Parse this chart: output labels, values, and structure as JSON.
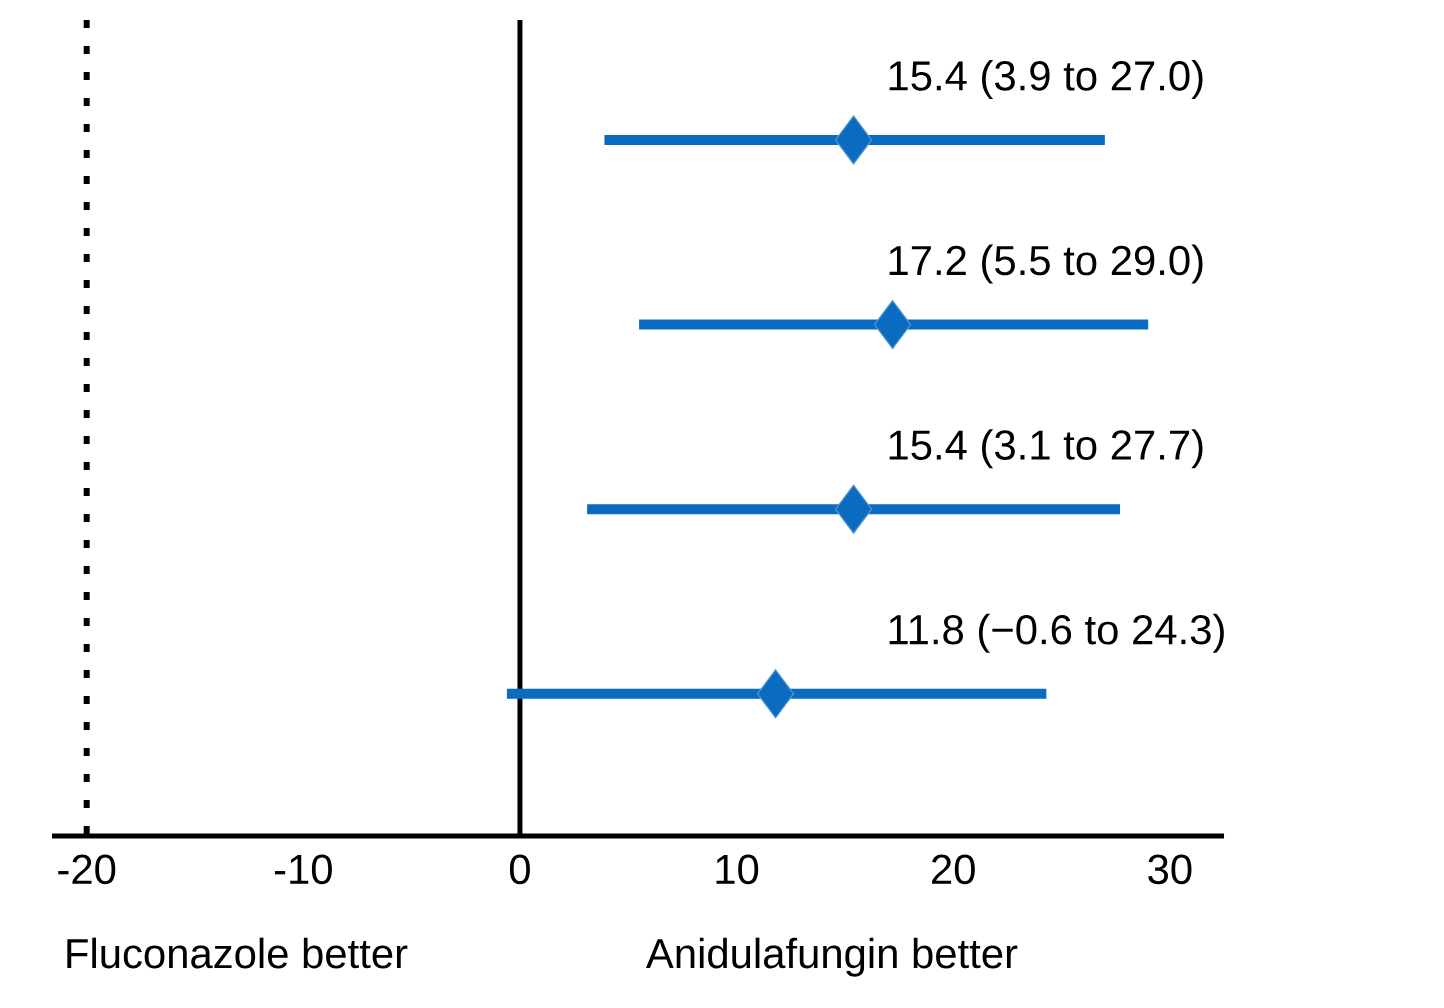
{
  "chart_data": {
    "type": "scatter",
    "orientation": "horizontal",
    "categories": [
      null,
      null,
      null,
      null
    ],
    "values": [
      15.4,
      17.2,
      15.4,
      11.8
    ],
    "errors": [
      [
        3.9,
        27.0
      ],
      [
        5.5,
        29.0
      ],
      [
        3.1,
        27.7
      ],
      [
        -0.6,
        24.3
      ]
    ],
    "value_labels": [
      "15.4 (3.9 to 27.0)",
      "17.2 (5.5 to 29.0)",
      "15.4 (3.1 to 27.7)",
      "11.8 (−0.6 to 24.3)"
    ],
    "color": "#0a6bc0",
    "marker": "diamond",
    "tick_labels": "x",
    "grid": false,
    "xlim": [
      -21.6,
      32.5
    ],
    "xticks": [
      -20,
      -10,
      0,
      10,
      20,
      30
    ],
    "ref_lines": [
      {
        "axis": "x",
        "value": -20,
        "line_style": "dotted",
        "color": "#000000"
      },
      {
        "axis": "x",
        "value": 0,
        "line_style": "solid",
        "color": "#000000"
      }
    ],
    "annotations": [
      "Fluconazole better",
      "Anidulafungin better"
    ]
  }
}
